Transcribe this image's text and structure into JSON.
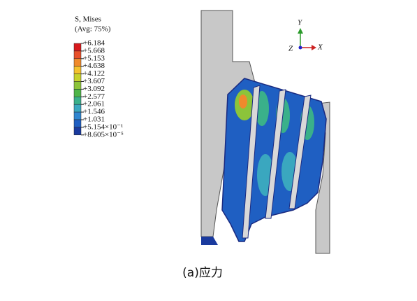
{
  "legend": {
    "title": "S, Mises",
    "subtitle": "(Avg: 75%)",
    "labels": [
      "+6.184",
      "+5.668",
      "+5.153",
      "+4.638",
      "+4.122",
      "+3.607",
      "+3.092",
      "+2.577",
      "+2.061",
      "+1.546",
      "+1.031",
      "+5.154×10⁻¹",
      "+8.605×10⁻⁵"
    ],
    "colors": [
      "#d7191c",
      "#e8502a",
      "#f08a2c",
      "#f4c22e",
      "#c8d22c",
      "#8cc43a",
      "#4eb548",
      "#3ab08a",
      "#3aa7bf",
      "#2f86d0",
      "#1f5fc2",
      "#1a3a9e"
    ]
  },
  "triad": {
    "y": "Y",
    "z": "Z",
    "x": "X"
  },
  "caption": "(a)应力"
}
